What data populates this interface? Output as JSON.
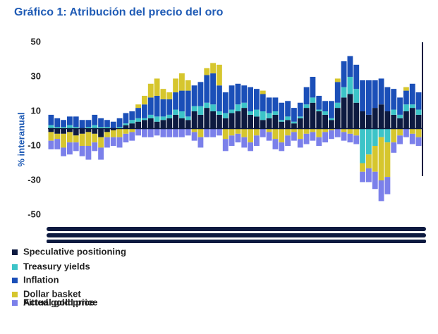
{
  "chart_data": {
    "type": "stacked_bar",
    "title": "Gráfico 1: Atribución del precio del oro",
    "y_label": "% interanual",
    "categories": [
      null,
      null,
      null,
      null,
      null,
      null,
      null,
      null,
      null,
      null,
      null,
      null,
      null,
      null,
      null,
      null,
      null,
      null,
      null,
      null,
      null,
      null,
      null,
      null,
      null,
      null,
      null,
      null,
      null,
      null,
      null,
      null,
      null,
      null,
      null,
      null,
      null,
      null,
      null,
      null,
      null,
      null,
      null,
      null,
      null,
      null,
      null,
      null,
      null,
      null,
      null,
      null,
      null,
      null,
      null,
      null,
      null,
      null,
      null,
      null
    ],
    "ylim": [
      -50,
      50
    ],
    "yticks": [
      50,
      30,
      10,
      -10,
      -30,
      -50
    ],
    "grid": false,
    "series": [
      {
        "name": "Speculative positioning",
        "color": "#0d1a40",
        "values": [
          -2,
          -3,
          -3,
          -2,
          -4,
          -3,
          -2,
          -3,
          -5,
          -2,
          -1,
          0,
          2,
          3,
          4,
          5,
          6,
          4,
          5,
          6,
          8,
          6,
          5,
          10,
          8,
          12,
          10,
          8,
          6,
          9,
          10,
          12,
          8,
          7,
          5,
          6,
          8,
          4,
          5,
          3,
          6,
          12,
          15,
          10,
          8,
          5,
          12,
          18,
          20,
          15,
          10,
          8,
          12,
          14,
          10,
          8,
          6,
          10,
          12,
          8
        ]
      },
      {
        "name": "Treasury yields",
        "color": "#3cc4c8",
        "values": [
          2,
          1,
          1,
          2,
          1,
          0,
          1,
          2,
          1,
          1,
          0,
          1,
          1,
          2,
          2,
          1,
          2,
          3,
          2,
          2,
          3,
          4,
          2,
          3,
          5,
          3,
          4,
          2,
          3,
          2,
          4,
          3,
          2,
          4,
          5,
          3,
          2,
          1,
          2,
          1,
          1,
          2,
          3,
          1,
          2,
          1,
          3,
          6,
          10,
          8,
          -20,
          -15,
          -10,
          -5,
          -8,
          3,
          2,
          4,
          2,
          3
        ]
      },
      {
        "name": "Inflation",
        "color": "#1b4fb8",
        "values": [
          6,
          5,
          4,
          5,
          6,
          5,
          4,
          6,
          5,
          4,
          4,
          5,
          6,
          5,
          6,
          8,
          10,
          12,
          10,
          9,
          10,
          12,
          15,
          12,
          14,
          16,
          18,
          15,
          12,
          14,
          12,
          10,
          14,
          12,
          10,
          9,
          8,
          10,
          9,
          8,
          8,
          10,
          12,
          8,
          6,
          10,
          12,
          15,
          12,
          14,
          18,
          20,
          16,
          15,
          14,
          12,
          10,
          8,
          12,
          10
        ]
      },
      {
        "name": "Dollar basket",
        "color": "#d6c62e",
        "values": [
          -5,
          -3,
          -8,
          -6,
          -4,
          -7,
          -8,
          -5,
          -6,
          -3,
          -4,
          -5,
          -3,
          -2,
          2,
          5,
          8,
          10,
          6,
          4,
          8,
          10,
          6,
          -2,
          -5,
          4,
          6,
          12,
          -6,
          -4,
          -3,
          -5,
          -8,
          -4,
          2,
          -2,
          -6,
          -8,
          -4,
          -2,
          -6,
          -3,
          -2,
          -5,
          -2,
          -1,
          2,
          -2,
          -3,
          -4,
          -5,
          -8,
          -15,
          -25,
          -20,
          -8,
          -4,
          2,
          -3,
          -5
        ]
      },
      {
        "name": "Fitted gold price",
        "color": "#7b80ea",
        "values": [
          -5,
          -6,
          -5,
          -7,
          -5,
          -6,
          -8,
          -5,
          -7,
          -6,
          -5,
          -6,
          -5,
          -5,
          -4,
          -5,
          -5,
          -4,
          -5,
          -5,
          -5,
          -5,
          -4,
          -5,
          -6,
          -5,
          -5,
          -4,
          -7,
          -6,
          -5,
          -6,
          -5,
          -6,
          -5,
          -5,
          -6,
          -5,
          -6,
          -5,
          -5,
          -6,
          -5,
          -5,
          -6,
          -5,
          -5,
          -5,
          -5,
          -5,
          -6,
          -8,
          -10,
          -12,
          -10,
          -6,
          -5,
          -5,
          -6,
          -5
        ]
      },
      {
        "name": "Actual gold price",
        "color": "#0d1a40",
        "kind": "line",
        "values": [
          null,
          null,
          null,
          null,
          null,
          null,
          null,
          null,
          null,
          null,
          null,
          null,
          null,
          null,
          null,
          null,
          null,
          null,
          null,
          null,
          null,
          null,
          null,
          null,
          null,
          null,
          null,
          null,
          null,
          null,
          null,
          null,
          null,
          null,
          null,
          null,
          null,
          null,
          null,
          null,
          null,
          null,
          null,
          null,
          null,
          null,
          null,
          null,
          null,
          null,
          null,
          null,
          null,
          null,
          null,
          null,
          null,
          null,
          null,
          null
        ]
      }
    ]
  }
}
